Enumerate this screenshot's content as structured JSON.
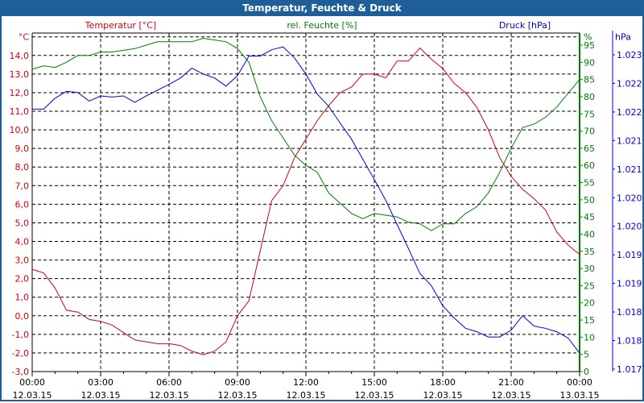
{
  "window": {
    "title": "Temperatur, Feuchte & Druck"
  },
  "chart_data": {
    "type": "line",
    "title": "Temperatur, Feuchte & Druck",
    "colors": {
      "temperature": "#d4000f",
      "humidity": "#008000",
      "pressure": "#0000e0",
      "frame": "#1f5f99"
    },
    "x_ticks": [
      {
        "time": "00:00",
        "date": "12.03.15"
      },
      {
        "time": "03:00",
        "date": "12.03.15"
      },
      {
        "time": "06:00",
        "date": "12.03.15"
      },
      {
        "time": "09:00",
        "date": "12.03.15"
      },
      {
        "time": "12:00",
        "date": "12.03.15"
      },
      {
        "time": "15:00",
        "date": "12.03.15"
      },
      {
        "time": "18:00",
        "date": "12.03.15"
      },
      {
        "time": "21:00",
        "date": "12.03.15"
      },
      {
        "time": "00:00",
        "date": "13.03.15"
      }
    ],
    "x_range_hours": [
      0,
      24
    ],
    "grid": true,
    "axes": {
      "temperature": {
        "legend": "Temperatur [°C]",
        "unit": "°C",
        "range": [
          -3,
          15
        ],
        "ticks": [
          "14,0",
          "13,0",
          "12,0",
          "11,0",
          "10,0",
          "9,0",
          "8,0",
          "7,0",
          "6,0",
          "5,0",
          "4,0",
          "3,0",
          "2,0",
          "1,0",
          "0,0",
          "-1,0",
          "-2,0",
          "-3,0"
        ]
      },
      "humidity": {
        "legend": "rel. Feuchte [%]",
        "unit": "%",
        "range": [
          0,
          100
        ],
        "ticks": [
          "95",
          "90",
          "85",
          "80",
          "75",
          "70",
          "65",
          "60",
          "55",
          "50",
          "45",
          "40",
          "35",
          "30",
          "25",
          "20",
          "15",
          "10",
          "5",
          "0"
        ]
      },
      "pressure": {
        "legend": "Druck [hPa]",
        "unit": "hPa",
        "range": [
          1.01746,
          1.02333
        ],
        "ticks": [
          "1.023",
          "1.022",
          "1.022",
          "1.021",
          "1.021",
          "1.020",
          "1.020",
          "1.019",
          "1.019",
          "1.018",
          "1.018",
          "1.017"
        ]
      }
    },
    "series": [
      {
        "name": "Temperatur",
        "axis": "temperature",
        "hours_step": 0.5,
        "values": [
          2.5,
          2.3,
          1.5,
          0.3,
          0.2,
          -0.2,
          -0.3,
          -0.5,
          -0.9,
          -1.3,
          -1.4,
          -1.5,
          -1.5,
          -1.6,
          -1.9,
          -2.1,
          -1.9,
          -1.4,
          0.0,
          0.8,
          3.5,
          6.2,
          7.0,
          8.5,
          9.5,
          10.5,
          11.3,
          12.0,
          12.3,
          13.0,
          13.0,
          12.8,
          13.7,
          13.7,
          14.4,
          13.8,
          13.3,
          12.5,
          12.0,
          11.2,
          10.0,
          8.5,
          7.5,
          6.8,
          6.3,
          5.7,
          4.5,
          3.8,
          3.3
        ]
      },
      {
        "name": "rel. Feuchte",
        "axis": "humidity",
        "hours_step": 0.5,
        "values": [
          88,
          89,
          88.5,
          90,
          92,
          92,
          93,
          93,
          93.5,
          94,
          95,
          96,
          96,
          96,
          96,
          97,
          96.5,
          96,
          94,
          90,
          80,
          73,
          68,
          63,
          60,
          58,
          52,
          49,
          46,
          44.5,
          46,
          45.5,
          45,
          43.5,
          43,
          41,
          43,
          43,
          46,
          48,
          52,
          58,
          65,
          71,
          72,
          74,
          77,
          81,
          85
        ]
      },
      {
        "name": "Druck",
        "axis": "pressure",
        "hours_step": 0.5,
        "values": [
          1.02201,
          1.02201,
          1.0222,
          1.02232,
          1.0223,
          1.02215,
          1.02224,
          1.02222,
          1.02224,
          1.02213,
          1.02224,
          1.02234,
          1.02244,
          1.02255,
          1.02272,
          1.02262,
          1.02255,
          1.02241,
          1.02259,
          1.02293,
          1.02293,
          1.02304,
          1.02309,
          1.0229,
          1.02262,
          1.02227,
          1.02206,
          1.02177,
          1.02149,
          1.02114,
          1.02079,
          1.02043,
          1.02001,
          1.01959,
          1.01916,
          1.01895,
          1.0186,
          1.01839,
          1.01821,
          1.01815,
          1.01806,
          1.01806,
          1.01818,
          1.01843,
          1.01825,
          1.01821,
          1.01815,
          1.01804,
          1.01778
        ]
      }
    ]
  }
}
